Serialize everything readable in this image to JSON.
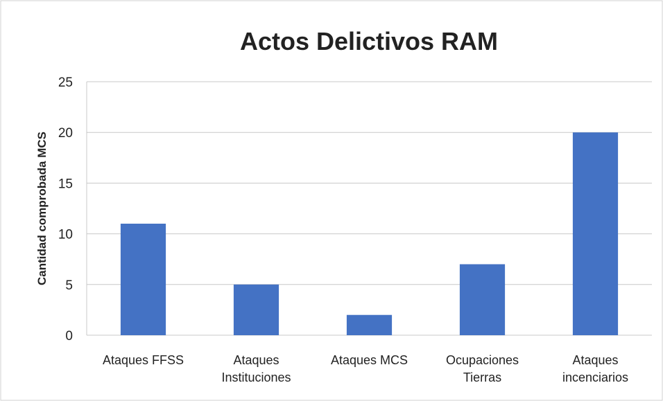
{
  "chart_data": {
    "type": "bar",
    "title": "Actos Delictivos RAM",
    "y_label": "Cantidad comprobada MCS",
    "categories": [
      "Ataques FFSS",
      "Ataques Instituciones",
      "Ataques MCS",
      "Ocupaciones Tierras",
      "Ataques incenciarios"
    ],
    "values": [
      11,
      5,
      2,
      7,
      20
    ],
    "color": "#4472c4",
    "ylim": [
      0,
      25
    ],
    "yticks": [
      0,
      5,
      10,
      15,
      20,
      25
    ],
    "grid": true
  }
}
